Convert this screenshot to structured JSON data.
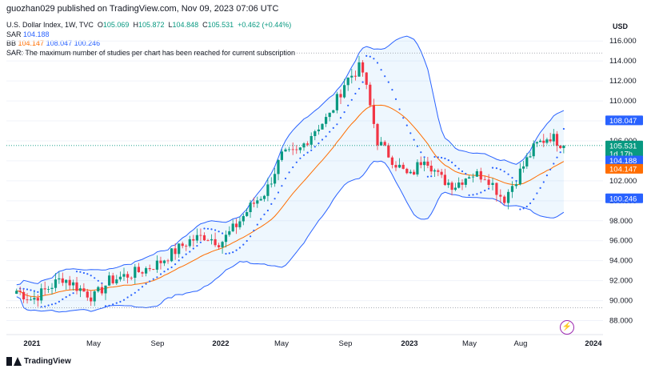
{
  "header": {
    "publisher": "guozhan029 published on TradingView.com, Nov 09, 2023 07:06 UTC"
  },
  "legend": {
    "symbol": "U.S. Dollar Index, 1W, TVC",
    "o_label": "O",
    "o": "105.069",
    "h_label": "H",
    "h": "105.872",
    "l_label": "L",
    "l": "104.848",
    "c_label": "C",
    "c": "105.531",
    "change": "+0.462 (+0.44%)",
    "sar_label": "SAR",
    "sar_value": "104.188",
    "bb_label": "BB",
    "bb_mid": "104.147",
    "bb_upper": "108.047",
    "bb_lower": "100.246",
    "message": "SAR: The maximum number of studies per chart has been reached for current subscription"
  },
  "axis": {
    "currency": "USD",
    "y_ticks": [
      "116.000",
      "114.000",
      "112.000",
      "110.000",
      "108.000",
      "106.000",
      "104.000",
      "102.000",
      "100.000",
      "98.000",
      "96.000",
      "94.000",
      "92.000",
      "90.000",
      "88.000"
    ],
    "x_ticks": [
      "2021",
      "May",
      "Sep",
      "2022",
      "May",
      "Sep",
      "2023",
      "May",
      "Aug",
      "2024"
    ]
  },
  "price_labels": {
    "bb_upper": "108.047",
    "close": "105.531",
    "countdown": "1d 17h",
    "sar": "104.188",
    "bb_mid": "104.147",
    "bb_lower": "100.246"
  },
  "footer": {
    "brand": "TradingView"
  },
  "colors": {
    "up": "#089981",
    "down": "#f23645",
    "band": "#2962ff",
    "mid": "#ff6d00",
    "fill": "rgba(33,150,243,0.08)",
    "sar": "#2962ff"
  },
  "chart_data": {
    "type": "candlestick",
    "title": "U.S. Dollar Index, 1W, TVC",
    "ylabel": "USD",
    "ylim": [
      87.3,
      117.2
    ],
    "x": [
      "2021",
      "May",
      "Sep",
      "2022",
      "May",
      "Sep",
      "2023",
      "May",
      "Aug",
      "2024"
    ],
    "close_path": [
      [
        "2020-12",
        91.0
      ],
      [
        "2021-01",
        90.1
      ],
      [
        "2021-03",
        92.3
      ],
      [
        "2021-05",
        90.3
      ],
      [
        "2021-06",
        92.0
      ],
      [
        "2021-08",
        93.0
      ],
      [
        "2021-09",
        93.7
      ],
      [
        "2021-11",
        96.0
      ],
      [
        "2021-12",
        96.5
      ],
      [
        "2022-01",
        95.8
      ],
      [
        "2022-02",
        97.5
      ],
      [
        "2022-03",
        99.5
      ],
      [
        "2022-04",
        101.0
      ],
      [
        "2022-05",
        104.5
      ],
      [
        "2022-06",
        104.8
      ],
      [
        "2022-07",
        107.0
      ],
      [
        "2022-08",
        108.5
      ],
      [
        "2022-09",
        112.0
      ],
      [
        "2022-10",
        113.5
      ],
      [
        "2022-11",
        106.0
      ],
      [
        "2022-12",
        104.0
      ],
      [
        "2023-01",
        102.3
      ],
      [
        "2023-02",
        104.5
      ],
      [
        "2023-03",
        102.3
      ],
      [
        "2023-04",
        101.5
      ],
      [
        "2023-05",
        102.7
      ],
      [
        "2023-06",
        102.5
      ],
      [
        "2023-07",
        100.1
      ],
      [
        "2023-08",
        103.0
      ],
      [
        "2023-09",
        105.5
      ],
      [
        "2023-10",
        106.5
      ],
      [
        "2023-11",
        105.531
      ]
    ],
    "series": [
      {
        "name": "SAR",
        "last": 104.188
      },
      {
        "name": "BB basis",
        "last": 104.147
      },
      {
        "name": "BB upper",
        "last": 108.047
      },
      {
        "name": "BB lower",
        "last": 100.246
      }
    ],
    "grid": true
  }
}
